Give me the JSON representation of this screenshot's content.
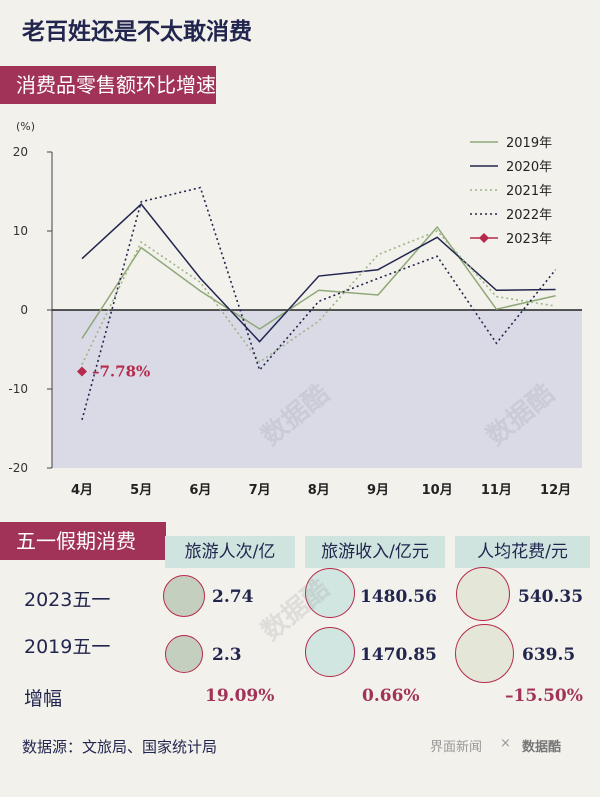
{
  "title": "老百姓还是不太敢消费",
  "section1": "消费品零售额环比增速",
  "section2": "五一假期消费",
  "footer": "数据源：文旅局、国家统计局",
  "brand1": "界面新闻",
  "brand_sep": "×",
  "brand2": "数据酷",
  "colors": {
    "band": "#a03357",
    "navy": "#22264f",
    "green": "#8fa878",
    "shade": "#d9dae6",
    "col_head": "#cfe4df"
  },
  "chart_data": {
    "type": "line",
    "ylabel": "(%)",
    "ylim": [
      -20,
      20
    ],
    "yticks": [
      20,
      10,
      0,
      -10,
      -20
    ],
    "categories": [
      "4月",
      "5月",
      "6月",
      "7月",
      "8月",
      "9月",
      "10月",
      "11月",
      "12月"
    ],
    "grid": false,
    "legend_position": "top-right",
    "series": [
      {
        "name": "2019年",
        "color": "#8fa878",
        "dash": "solid",
        "values": [
          -3.6,
          7.9,
          2.4,
          -2.4,
          2.5,
          1.9,
          10.5,
          0.1,
          1.8
        ]
      },
      {
        "name": "2020年",
        "color": "#22264f",
        "dash": "solid",
        "values": [
          6.5,
          13.4,
          4.0,
          -4.0,
          4.3,
          5.1,
          9.2,
          2.5,
          2.6
        ]
      },
      {
        "name": "2021年",
        "color": "#9bb585",
        "dash": "dotted",
        "values": [
          -6.9,
          8.6,
          3.5,
          -6.6,
          -1.4,
          7.0,
          10.0,
          1.7,
          0.5
        ]
      },
      {
        "name": "2022年",
        "color": "#22264f",
        "dash": "dotted",
        "values": [
          -13.9,
          13.7,
          15.5,
          -7.6,
          1.1,
          4.0,
          6.8,
          -4.2,
          5.1
        ]
      },
      {
        "name": "2023年",
        "color": "#b52a4a",
        "marker": "diamond",
        "values": [
          -7.78,
          null,
          null,
          null,
          null,
          null,
          null,
          null,
          null
        ]
      }
    ],
    "annotation": "–7.78%"
  },
  "table": {
    "columns": [
      "旅游人次/亿",
      "旅游收入/亿元",
      "人均花费/元"
    ],
    "rows": [
      {
        "label": "2023五一",
        "values": [
          "2.74",
          "1480.56",
          "540.35"
        ]
      },
      {
        "label": "2019五一",
        "values": [
          "2.3",
          "1470.85",
          "639.5"
        ]
      }
    ],
    "growth_label": "增幅",
    "growth": [
      "19.09%",
      "0.66%",
      "–15.50%"
    ]
  }
}
